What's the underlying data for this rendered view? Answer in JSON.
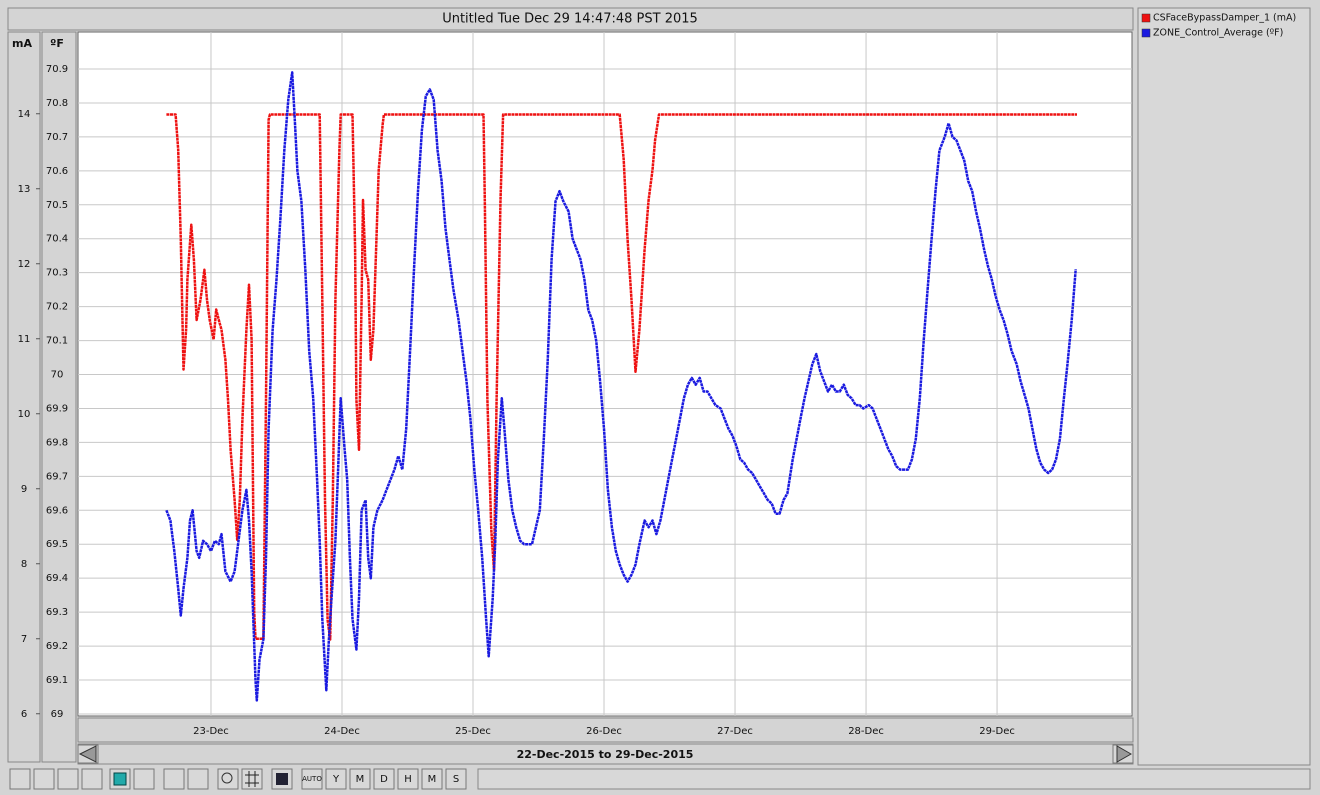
{
  "chart_data": {
    "type": "line",
    "title": "Untitled Tue Dec 29 14:47:48 PST 2015",
    "range_label": "22-Dec-2015 to 29-Dec-2015",
    "y_label": "mA",
    "y2_label": "ºF",
    "grid": true,
    "xlim": [
      21.985,
      30.03
    ],
    "xticks": [
      {
        "value": 23,
        "label": "23-Dec"
      },
      {
        "value": 24,
        "label": "24-Dec"
      },
      {
        "value": 25,
        "label": "25-Dec"
      },
      {
        "value": 26,
        "label": "26-Dec"
      },
      {
        "value": 27,
        "label": "27-Dec"
      },
      {
        "value": 28,
        "label": "28-Dec"
      },
      {
        "value": 29,
        "label": "29-Dec"
      }
    ],
    "ylim": [
      5.97,
      15.09
    ],
    "yticks": [
      6,
      7,
      8,
      9,
      10,
      11,
      12,
      13,
      14
    ],
    "y2lim": [
      68.994,
      71.009
    ],
    "y2ticks": [
      69,
      69.1,
      69.2,
      69.3,
      69.4,
      69.5,
      69.6,
      69.7,
      69.8,
      69.9,
      70,
      70.1,
      70.2,
      70.3,
      70.4,
      70.5,
      70.6,
      70.7,
      70.8,
      70.9
    ],
    "series": [
      {
        "name": "CSFaceBypassDamper_1 (mA)",
        "color": "#ee1111",
        "axis": "y",
        "x": [
          22.66,
          22.73,
          22.75,
          22.77,
          22.79,
          22.81,
          22.82,
          22.85,
          22.87,
          22.89,
          22.92,
          22.95,
          22.97,
          22.99,
          23.02,
          23.04,
          23.06,
          23.08,
          23.11,
          23.13,
          23.15,
          23.18,
          23.2,
          23.22,
          23.24,
          23.27,
          23.29,
          23.31,
          23.33,
          23.34,
          23.4,
          23.42,
          23.44,
          23.45,
          23.83,
          23.85,
          23.87,
          23.89,
          23.91,
          23.93,
          23.95,
          23.98,
          23.99,
          24.08,
          24.1,
          24.11,
          24.13,
          24.15,
          24.16,
          24.18,
          24.2,
          24.22,
          24.24,
          24.26,
          24.28,
          24.31,
          24.32,
          25.08,
          25.09,
          25.11,
          25.14,
          25.16,
          25.18,
          25.21,
          25.23,
          26.12,
          26.15,
          26.18,
          26.21,
          26.24,
          26.27,
          26.31,
          26.34,
          26.37,
          26.39,
          26.42,
          29.61
        ],
        "values": [
          13.99,
          13.99,
          13.52,
          12.32,
          10.59,
          11.12,
          11.79,
          12.52,
          12.05,
          11.25,
          11.52,
          11.92,
          11.52,
          11.25,
          10.99,
          11.39,
          11.25,
          11.12,
          10.72,
          10.19,
          9.52,
          8.85,
          8.32,
          8.85,
          9.92,
          11.12,
          11.72,
          10.99,
          7.36,
          7.0,
          7.0,
          10.19,
          13.92,
          13.99,
          13.99,
          11.52,
          8.85,
          7.25,
          6.99,
          8.85,
          11.52,
          13.52,
          13.99,
          13.99,
          12.19,
          10.19,
          9.52,
          11.52,
          12.85,
          11.92,
          11.79,
          10.72,
          11.12,
          12.19,
          13.25,
          13.85,
          13.99,
          13.99,
          12.85,
          10.19,
          8.45,
          7.92,
          10.19,
          12.85,
          13.99,
          13.99,
          13.39,
          12.32,
          11.52,
          10.56,
          11.12,
          12.19,
          12.85,
          13.25,
          13.65,
          13.99,
          13.99
        ]
      },
      {
        "name": "ZONE_Control_Average (ºF)",
        "color": "#1a1ae0",
        "axis": "y2",
        "x": [
          22.66,
          22.69,
          22.72,
          22.75,
          22.77,
          22.79,
          22.82,
          22.84,
          22.86,
          22.89,
          22.91,
          22.94,
          22.97,
          23.0,
          23.03,
          23.06,
          23.08,
          23.11,
          23.15,
          23.18,
          23.21,
          23.24,
          23.27,
          23.29,
          23.31,
          23.34,
          23.35,
          23.37,
          23.4,
          23.42,
          23.44,
          23.47,
          23.5,
          23.53,
          23.56,
          23.59,
          23.62,
          23.64,
          23.66,
          23.69,
          23.72,
          23.75,
          23.78,
          23.81,
          23.83,
          23.85,
          23.88,
          23.9,
          23.92,
          23.95,
          23.97,
          23.99,
          24.02,
          24.04,
          24.06,
          24.08,
          24.11,
          24.13,
          24.15,
          24.18,
          24.2,
          24.22,
          24.24,
          24.27,
          24.31,
          24.34,
          24.37,
          24.4,
          24.43,
          24.46,
          24.49,
          24.52,
          24.55,
          24.58,
          24.61,
          24.64,
          24.67,
          24.7,
          24.73,
          24.76,
          24.79,
          24.82,
          24.85,
          24.89,
          24.92,
          24.95,
          24.98,
          25.01,
          25.04,
          25.07,
          25.1,
          25.12,
          25.15,
          25.17,
          25.19,
          25.22,
          25.24,
          25.27,
          25.3,
          25.33,
          25.36,
          25.39,
          25.42,
          25.45,
          25.48,
          25.51,
          25.54,
          25.57,
          25.6,
          25.63,
          25.66,
          25.69,
          25.73,
          25.76,
          25.79,
          25.82,
          25.85,
          25.88,
          25.91,
          25.94,
          25.97,
          26.0,
          26.03,
          26.06,
          26.09,
          26.12,
          26.15,
          26.18,
          26.21,
          26.24,
          26.27,
          26.31,
          26.34,
          26.37,
          26.4,
          26.43,
          26.46,
          26.49,
          26.52,
          26.55,
          26.58,
          26.61,
          26.64,
          26.67,
          26.7,
          26.73,
          26.76,
          26.79,
          26.82,
          26.85,
          26.89,
          26.92,
          26.95,
          26.98,
          27.01,
          27.04,
          27.07,
          27.1,
          27.13,
          27.16,
          27.19,
          27.22,
          27.25,
          27.28,
          27.31,
          27.34,
          27.37,
          27.4,
          27.44,
          27.47,
          27.5,
          27.53,
          27.56,
          27.59,
          27.62,
          27.65,
          27.68,
          27.71,
          27.74,
          27.77,
          27.8,
          27.83,
          27.86,
          27.89,
          27.92,
          27.95,
          27.98,
          28.02,
          28.05,
          28.08,
          28.11,
          28.14,
          28.17,
          28.2,
          28.23,
          28.26,
          28.29,
          28.32,
          28.35,
          28.38,
          28.41,
          28.44,
          28.47,
          28.5,
          28.53,
          28.56,
          28.6,
          28.63,
          28.66,
          28.69,
          28.72,
          28.75,
          28.78,
          28.81,
          28.84,
          28.87,
          28.9,
          28.93,
          28.96,
          28.99,
          29.02,
          29.05,
          29.08,
          29.11,
          29.15,
          29.18,
          29.21,
          29.24,
          29.27,
          29.3,
          29.33,
          29.36,
          29.39,
          29.42,
          29.45,
          29.48,
          29.51,
          29.54,
          29.57,
          29.6
        ],
        "values": [
          69.6,
          69.57,
          69.48,
          69.37,
          69.29,
          69.37,
          69.46,
          69.57,
          69.6,
          69.48,
          69.46,
          69.51,
          69.5,
          69.48,
          69.51,
          69.5,
          69.53,
          69.42,
          69.39,
          69.42,
          69.51,
          69.6,
          69.66,
          69.57,
          69.42,
          69.1,
          69.04,
          69.16,
          69.22,
          69.46,
          69.84,
          70.13,
          70.28,
          70.46,
          70.66,
          70.81,
          70.89,
          70.75,
          70.6,
          70.51,
          70.31,
          70.07,
          69.93,
          69.69,
          69.51,
          69.28,
          69.07,
          69.22,
          69.34,
          69.51,
          69.72,
          69.93,
          69.78,
          69.69,
          69.46,
          69.28,
          69.19,
          69.34,
          69.6,
          69.63,
          69.46,
          69.4,
          69.55,
          69.6,
          69.63,
          69.66,
          69.69,
          69.72,
          69.76,
          69.72,
          69.84,
          70.07,
          70.31,
          70.54,
          70.72,
          70.82,
          70.84,
          70.81,
          70.66,
          70.57,
          70.43,
          70.34,
          70.25,
          70.16,
          70.07,
          69.98,
          69.87,
          69.72,
          69.6,
          69.46,
          69.28,
          69.17,
          69.34,
          69.51,
          69.75,
          69.93,
          69.84,
          69.69,
          69.6,
          69.55,
          69.51,
          69.5,
          69.5,
          69.5,
          69.55,
          69.6,
          69.81,
          70.04,
          70.34,
          70.51,
          70.54,
          70.51,
          70.48,
          70.4,
          70.37,
          70.34,
          70.28,
          70.19,
          70.16,
          70.1,
          69.98,
          69.84,
          69.66,
          69.55,
          69.48,
          69.44,
          69.41,
          69.39,
          69.41,
          69.44,
          69.5,
          69.57,
          69.55,
          69.57,
          69.53,
          69.57,
          69.63,
          69.69,
          69.75,
          69.81,
          69.87,
          69.93,
          69.97,
          69.99,
          69.97,
          69.99,
          69.95,
          69.95,
          69.93,
          69.91,
          69.9,
          69.87,
          69.84,
          69.82,
          69.79,
          69.75,
          69.74,
          69.72,
          69.71,
          69.69,
          69.67,
          69.65,
          69.63,
          69.62,
          69.59,
          69.59,
          69.63,
          69.65,
          69.75,
          69.81,
          69.87,
          69.93,
          69.98,
          70.03,
          70.06,
          70.01,
          69.98,
          69.95,
          69.97,
          69.95,
          69.95,
          69.97,
          69.94,
          69.93,
          69.91,
          69.91,
          69.9,
          69.91,
          69.9,
          69.87,
          69.84,
          69.81,
          69.78,
          69.76,
          69.73,
          69.72,
          69.72,
          69.72,
          69.75,
          69.81,
          69.93,
          70.1,
          70.25,
          70.4,
          70.54,
          70.66,
          70.7,
          70.74,
          70.7,
          70.69,
          70.66,
          70.63,
          70.57,
          70.54,
          70.48,
          70.43,
          70.37,
          70.32,
          70.28,
          70.23,
          70.19,
          70.16,
          70.12,
          70.07,
          70.03,
          69.98,
          69.94,
          69.9,
          69.84,
          69.78,
          69.74,
          69.72,
          69.71,
          69.72,
          69.75,
          69.81,
          69.93,
          70.04,
          70.16,
          70.31
        ]
      }
    ]
  },
  "toolbar": {
    "range_buttons": [
      "AUTO",
      "Y",
      "M",
      "D",
      "H",
      "M",
      "S"
    ]
  }
}
